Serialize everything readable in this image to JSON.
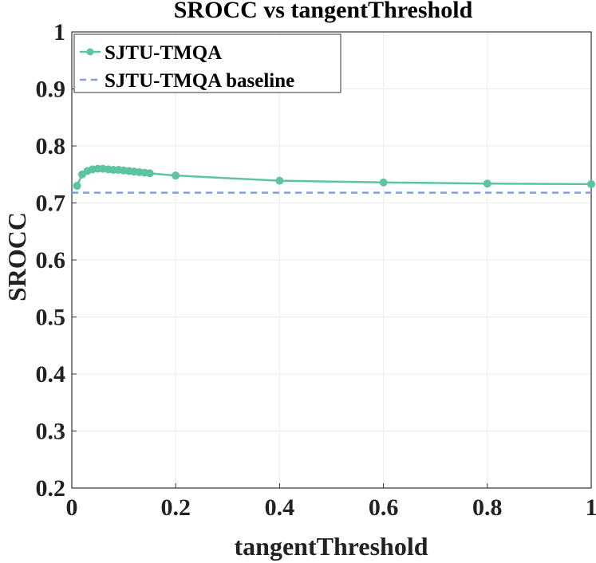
{
  "chart_data": {
    "type": "line",
    "title": "SROCC vs tangentThreshold",
    "xlabel": "tangentThreshold",
    "ylabel": "SROCC",
    "xlim": [
      0,
      1
    ],
    "ylim": [
      0.2,
      1
    ],
    "xticks": [
      0,
      0.2,
      0.4,
      0.6,
      0.8,
      1
    ],
    "xtick_labels": [
      "0",
      "0.2",
      "0.4",
      "0.6",
      "0.8",
      "1"
    ],
    "yticks": [
      0.2,
      0.3,
      0.4,
      0.5,
      0.6,
      0.7,
      0.8,
      0.9,
      1
    ],
    "ytick_labels": [
      "0.2",
      "0.3",
      "0.4",
      "0.5",
      "0.6",
      "0.7",
      "0.8",
      "0.9",
      "1"
    ],
    "grid": true,
    "legend_position": "top-left",
    "series": [
      {
        "name": "SJTU-TMQA",
        "color": "#5cc5a0",
        "style": "solid-markers",
        "x": [
          0.01,
          0.02,
          0.03,
          0.04,
          0.05,
          0.06,
          0.07,
          0.08,
          0.09,
          0.1,
          0.11,
          0.12,
          0.13,
          0.14,
          0.15,
          0.2,
          0.4,
          0.6,
          0.8,
          1.0
        ],
        "y": [
          0.73,
          0.75,
          0.756,
          0.759,
          0.76,
          0.76,
          0.759,
          0.758,
          0.758,
          0.757,
          0.756,
          0.755,
          0.754,
          0.753,
          0.752,
          0.748,
          0.739,
          0.736,
          0.734,
          0.733
        ]
      },
      {
        "name": "SJTU-TMQA baseline",
        "color": "#8a9ed2",
        "style": "dashed",
        "x": [
          0,
          1
        ],
        "y": [
          0.718,
          0.718
        ]
      }
    ]
  }
}
